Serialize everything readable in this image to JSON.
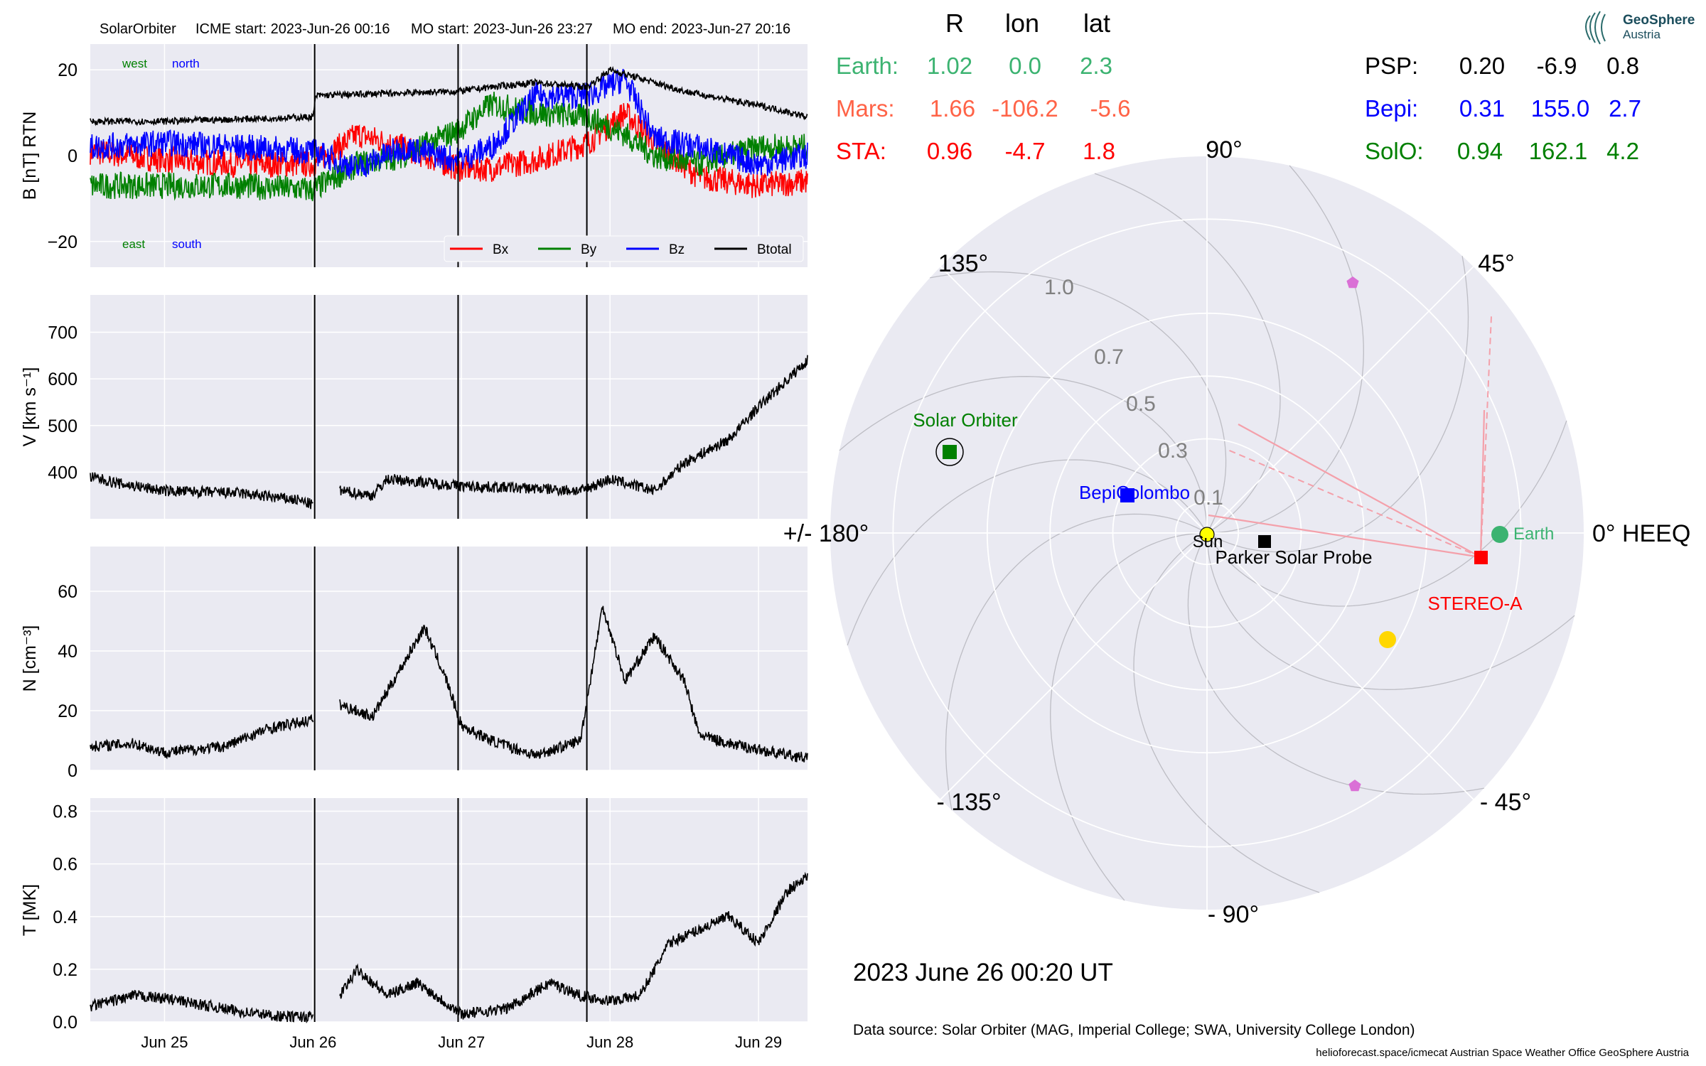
{
  "header": {
    "spacecraft": "SolarOrbiter",
    "icme_start": "ICME start: 2023-Jun-26 00:16",
    "mo_start": "MO start: 2023-Jun-26 23:27",
    "mo_end": "MO end: 2023-Jun-27 20:16"
  },
  "colors": {
    "panel_bg": "#eaeaf2",
    "grid": "#ffffff",
    "bx": "#ff0000",
    "by": "#008000",
    "bz": "#0000ff",
    "btotal": "#000000",
    "earth": "#3cb371",
    "mars": "#ff6347",
    "sta": "#ff0000",
    "psp": "#000000",
    "bepi": "#0000ff",
    "solo": "#008000",
    "sun": "#ffff00",
    "planet_yellow": "#ffd700",
    "pentagon": "#da70d6"
  },
  "positions_table": {
    "headers": [
      "R",
      "lon",
      "lat"
    ],
    "rows": [
      {
        "name": "Earth:",
        "R": "1.02",
        "lon": "0.0",
        "lat": "2.3"
      },
      {
        "name": "Mars:",
        "R": "1.66",
        "lon": "-106.2",
        "lat": "-5.6"
      },
      {
        "name": "STA:",
        "R": "0.96",
        "lon": "-4.7",
        "lat": "1.8"
      },
      {
        "name": "PSP:",
        "R": "0.20",
        "lon": "-6.9",
        "lat": "0.8"
      },
      {
        "name": "Bepi:",
        "R": "0.31",
        "lon": "155.0",
        "lat": "2.7"
      },
      {
        "name": "SolO:",
        "R": "0.94",
        "lon": "162.1",
        "lat": "4.2"
      }
    ]
  },
  "logo": {
    "line1": "GeoSphere",
    "line2": "Austria"
  },
  "timestamp": "2023 June 26  00:20 UT",
  "data_source": "Data source: Solar Orbiter (MAG, Imperial College; SWA, University College London)",
  "footer": "helioforecast.space/icmecat   Austrian Space Weather Office   GeoSphere Austria",
  "chart_data": [
    {
      "type": "line",
      "ylabel": "B [nT] RTN",
      "ylim": [
        -26,
        26
      ],
      "yticks": [
        -20,
        0,
        20
      ],
      "x_range_days": [
        24.5,
        29.33
      ],
      "event_lines_days": [
        26.011,
        26.977,
        27.844
      ],
      "legend": [
        "Bx",
        "By",
        "Bz",
        "Btotal"
      ],
      "annotations": {
        "top_left": "west",
        "top_right": "north",
        "bottom_left": "east",
        "bottom_right": "south"
      },
      "series": [
        {
          "name": "Btotal",
          "x": [
            24.5,
            25.0,
            25.5,
            26.0,
            26.02,
            26.5,
            26.98,
            27.2,
            27.5,
            27.85,
            28.0,
            28.2,
            28.5,
            28.8,
            29.1,
            29.33
          ],
          "values": [
            8,
            8,
            8.5,
            9,
            14,
            14.5,
            15,
            16,
            17,
            16,
            20,
            18,
            15,
            13,
            11,
            9
          ]
        },
        {
          "name": "Bx",
          "x": [
            24.5,
            25.0,
            25.5,
            26.0,
            26.3,
            26.6,
            26.98,
            27.2,
            27.5,
            27.85,
            28.1,
            28.3,
            28.6,
            29.0,
            29.33
          ],
          "values": [
            1,
            -1,
            -2,
            -2,
            5,
            2,
            -3,
            -3,
            -1,
            3,
            10,
            3,
            -5,
            -7,
            -6
          ]
        },
        {
          "name": "By",
          "x": [
            24.5,
            25.0,
            25.5,
            26.0,
            26.3,
            26.6,
            26.98,
            27.2,
            27.5,
            27.85,
            28.1,
            28.3,
            28.6,
            29.0,
            29.33
          ],
          "values": [
            -7,
            -7,
            -7,
            -8,
            -2,
            0,
            6,
            12,
            10,
            9,
            5,
            0,
            -2,
            2,
            2
          ]
        },
        {
          "name": "Bz",
          "x": [
            24.5,
            25.0,
            25.5,
            26.0,
            26.3,
            26.6,
            26.98,
            27.2,
            27.5,
            27.85,
            28.1,
            28.3,
            28.6,
            29.0,
            29.33
          ],
          "values": [
            2,
            3,
            2,
            1,
            -3,
            2,
            -1,
            2,
            14,
            14,
            18,
            4,
            2,
            -2,
            0
          ]
        }
      ]
    },
    {
      "type": "line",
      "ylabel": "V [km s⁻¹]",
      "ylim": [
        300,
        780
      ],
      "yticks": [
        400,
        500,
        600,
        700
      ],
      "series": [
        {
          "x": [
            24.5,
            24.7,
            25.0,
            25.5,
            25.9,
            26.0
          ],
          "values": [
            390,
            375,
            360,
            355,
            340,
            330
          ]
        },
        {
          "x": [
            26.18,
            26.4,
            26.5,
            26.7,
            27.0,
            27.5,
            27.8,
            28.0,
            28.3,
            28.5,
            28.8,
            29.0,
            29.2,
            29.33
          ],
          "values": [
            360,
            350,
            385,
            380,
            370,
            365,
            360,
            385,
            360,
            420,
            470,
            540,
            600,
            640
          ]
        }
      ]
    },
    {
      "type": "line",
      "ylabel": "N [cm⁻³]",
      "ylim": [
        0,
        75
      ],
      "yticks": [
        0,
        20,
        40,
        60
      ],
      "series": [
        {
          "x": [
            24.5,
            24.8,
            25.0,
            25.4,
            25.7,
            26.0
          ],
          "values": [
            8,
            9,
            6,
            8,
            14,
            17
          ]
        },
        {
          "x": [
            26.18,
            26.4,
            26.6,
            26.75,
            26.9,
            27.0,
            27.2,
            27.5,
            27.8,
            27.95,
            28.1,
            28.3,
            28.5,
            28.6,
            28.8,
            29.1,
            29.33
          ],
          "values": [
            22,
            18,
            35,
            48,
            30,
            15,
            10,
            5,
            10,
            55,
            30,
            45,
            30,
            12,
            9,
            6,
            4
          ]
        }
      ]
    },
    {
      "type": "line",
      "ylabel": "T [MK]",
      "ylim": [
        0,
        0.85
      ],
      "yticks": [
        0.0,
        0.2,
        0.4,
        0.6,
        0.8
      ],
      "x_tick_labels": [
        "Jun 25",
        "Jun 26",
        "Jun 27",
        "Jun 28",
        "Jun 29"
      ],
      "series": [
        {
          "x": [
            24.5,
            24.8,
            25.0,
            25.5,
            25.8,
            26.0
          ],
          "values": [
            0.06,
            0.1,
            0.09,
            0.04,
            0.02,
            0.02
          ]
        },
        {
          "x": [
            26.18,
            26.3,
            26.5,
            26.7,
            27.0,
            27.3,
            27.6,
            27.8,
            28.0,
            28.2,
            28.4,
            28.6,
            28.8,
            29.0,
            29.2,
            29.33
          ],
          "values": [
            0.1,
            0.2,
            0.1,
            0.15,
            0.03,
            0.05,
            0.15,
            0.1,
            0.08,
            0.1,
            0.3,
            0.35,
            0.4,
            0.3,
            0.5,
            0.55
          ]
        }
      ]
    },
    {
      "type": "scatter",
      "name": "polar",
      "angle_labels": [
        "0° HEEQ",
        "45°",
        "90°",
        "135°",
        "+/- 180°",
        "- 135°",
        "- 90°",
        "- 45°"
      ],
      "radius_labels": [
        "0.1",
        "0.3",
        "0.5",
        "0.7",
        "1.0"
      ],
      "r_max": 1.2,
      "bodies": [
        {
          "name": "Sun",
          "label": "Sun",
          "r": 0.0,
          "lon": 0
        },
        {
          "name": "Earth",
          "label": "Earth",
          "r": 1.02,
          "lon": 0.0
        },
        {
          "name": "STEREO-A",
          "label": "STEREO-A",
          "r": 0.96,
          "lon": -4.7
        },
        {
          "name": "Parker Solar Probe",
          "label": "Parker Solar Probe",
          "r": 0.2,
          "lon": -6.9
        },
        {
          "name": "BepiColombo",
          "label": "BepiColombo",
          "r": 0.31,
          "lon": 155.0
        },
        {
          "name": "Solar Orbiter",
          "label": "Solar Orbiter",
          "r": 0.94,
          "lon": 162.1
        }
      ]
    }
  ]
}
